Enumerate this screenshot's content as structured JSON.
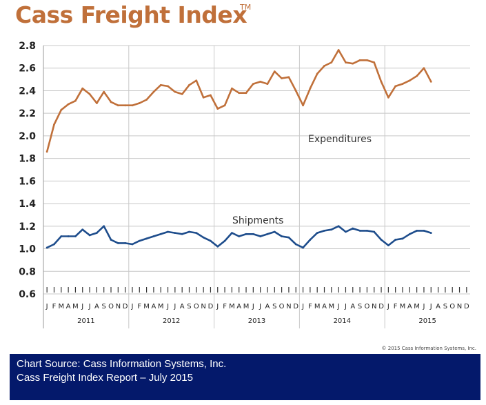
{
  "title": "Cass Freight Index",
  "title_mark": "TM",
  "copyright": "© 2015 Cass Information Systems, Inc.",
  "source": {
    "line1": "Chart Source: Cass Information Systems, Inc.",
    "line2": "Cass Freight Index Report – July 2015"
  },
  "chart_data": {
    "type": "line",
    "title": "Cass Freight Index",
    "xlabel": "",
    "ylabel": "",
    "ylim": [
      0.6,
      2.8
    ],
    "yticks": [
      "0.6",
      "0.8",
      "1.0",
      "1.2",
      "1.4",
      "1.6",
      "1.8",
      "2.0",
      "2.2",
      "2.4",
      "2.6",
      "2.8"
    ],
    "grid": true,
    "month_labels": [
      "J",
      "F",
      "M",
      "A",
      "M",
      "J",
      "J",
      "A",
      "S",
      "O",
      "N",
      "D"
    ],
    "years": [
      "2011",
      "2012",
      "2013",
      "2014",
      "2015"
    ],
    "series": [
      {
        "name": "Expenditures",
        "color": "#c0703a",
        "values": [
          1.86,
          2.1,
          2.23,
          2.28,
          2.31,
          2.42,
          2.37,
          2.29,
          2.39,
          2.3,
          2.27,
          2.27,
          2.27,
          2.29,
          2.32,
          2.39,
          2.45,
          2.44,
          2.39,
          2.37,
          2.45,
          2.49,
          2.34,
          2.36,
          2.24,
          2.27,
          2.42,
          2.38,
          2.38,
          2.46,
          2.48,
          2.46,
          2.57,
          2.51,
          2.52,
          2.4,
          2.27,
          2.42,
          2.55,
          2.62,
          2.65,
          2.76,
          2.65,
          2.64,
          2.67,
          2.67,
          2.65,
          2.48,
          2.34,
          2.44,
          2.46,
          2.49,
          2.53,
          2.6,
          2.48
        ]
      },
      {
        "name": "Shipments",
        "color": "#1e4d8c",
        "values": [
          1.01,
          1.04,
          1.11,
          1.11,
          1.11,
          1.17,
          1.12,
          1.14,
          1.2,
          1.08,
          1.05,
          1.05,
          1.04,
          1.07,
          1.09,
          1.11,
          1.13,
          1.15,
          1.14,
          1.13,
          1.15,
          1.14,
          1.1,
          1.07,
          1.02,
          1.07,
          1.14,
          1.11,
          1.13,
          1.13,
          1.11,
          1.13,
          1.15,
          1.11,
          1.1,
          1.04,
          1.01,
          1.08,
          1.14,
          1.16,
          1.17,
          1.2,
          1.15,
          1.18,
          1.16,
          1.16,
          1.15,
          1.08,
          1.03,
          1.08,
          1.09,
          1.13,
          1.16,
          1.16,
          1.14
        ]
      }
    ],
    "annotations": [
      {
        "text": "Expenditures",
        "series": "Expenditures"
      },
      {
        "text": "Shipments",
        "series": "Shipments"
      }
    ]
  }
}
